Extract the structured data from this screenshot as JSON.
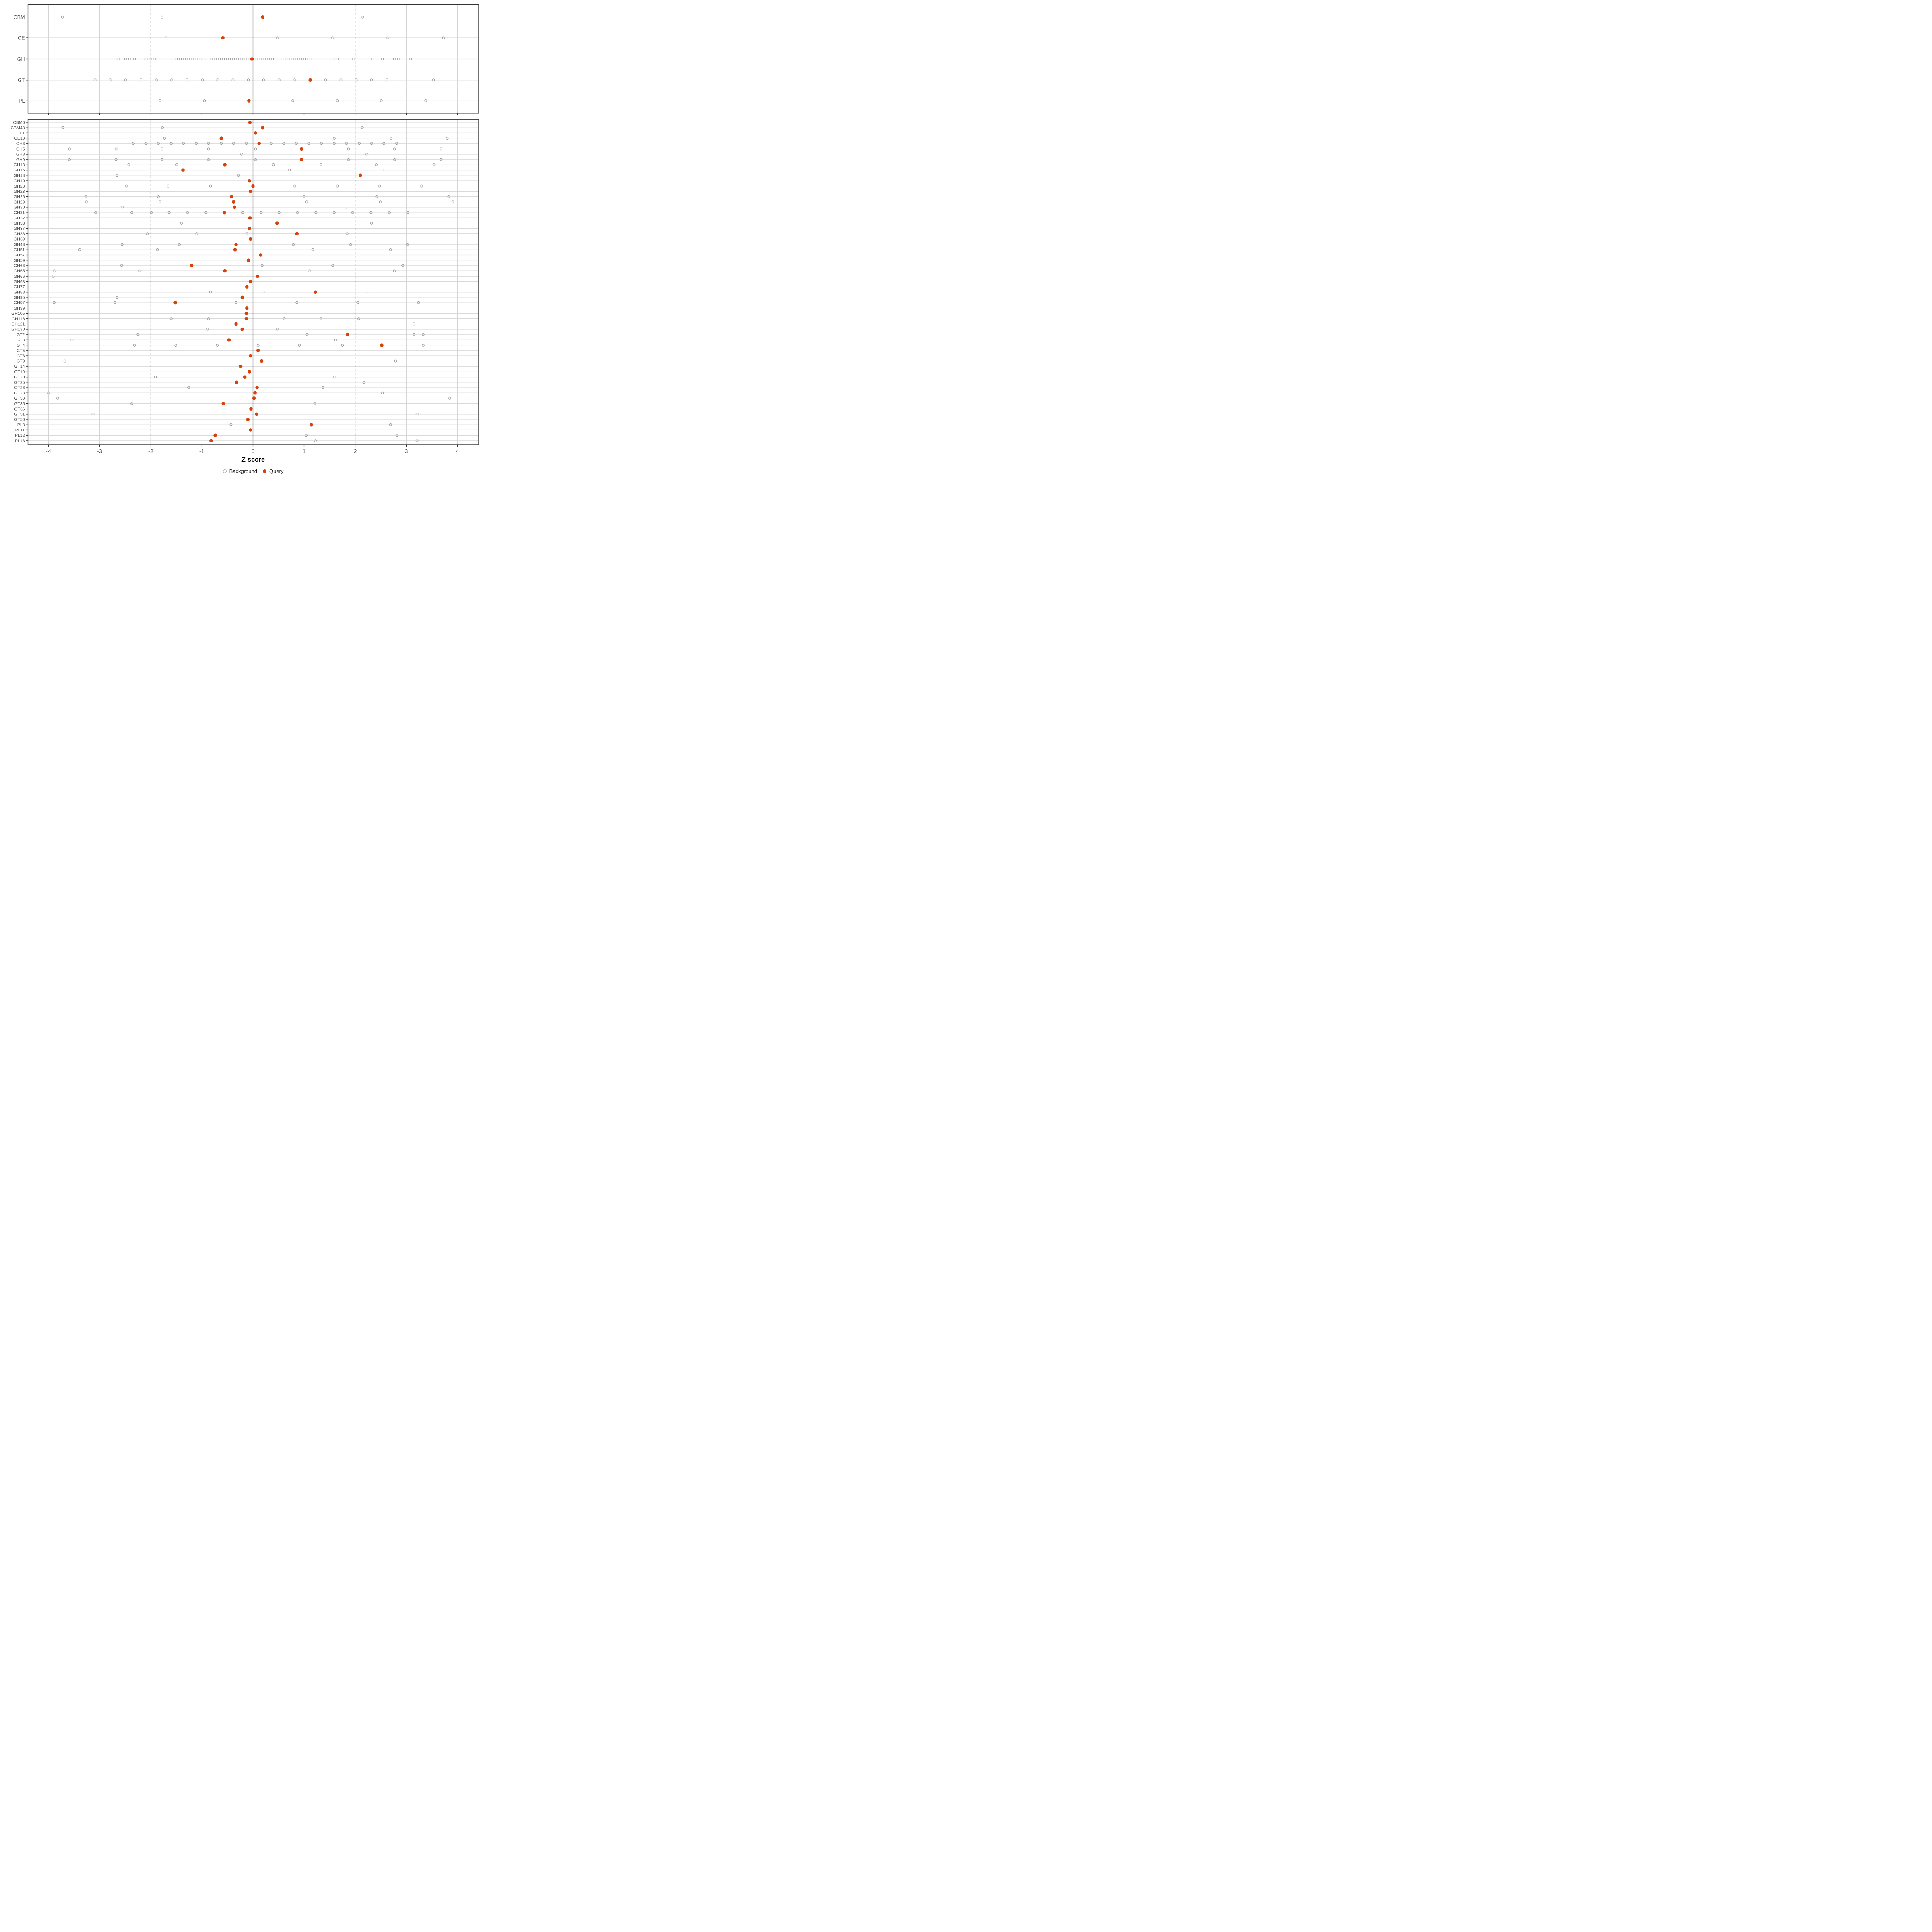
{
  "axis": {
    "label": "Z-score",
    "ticks": [
      -4,
      -3,
      -2,
      -1,
      0,
      1,
      2,
      3,
      4
    ],
    "range": [
      -4.4,
      4.41
    ],
    "zero_line": 0,
    "dashed_lines": [
      -2,
      2
    ]
  },
  "legend": {
    "background_label": "Background",
    "query_label": "Query"
  },
  "colors": {
    "query": "#d6430a",
    "background_stroke": "#9b9b9b",
    "grid": "#d9d9d9",
    "panel_border": "#333333",
    "axis_text": "#4d4d4d",
    "ref_line": "#4a4a4a"
  },
  "chart_data": [
    {
      "type": "scatter",
      "panel": "top",
      "xlabel": "Z-score",
      "xlim": [
        -4.4,
        4.41
      ],
      "legend_position": "bottom",
      "grid": true,
      "rows": [
        {
          "label": "CBM",
          "query": 0.19,
          "background": [
            -3.73,
            -1.78,
            2.15
          ]
        },
        {
          "label": "CE",
          "query": -0.59,
          "background": [
            -1.7,
            0.48,
            1.56,
            2.64,
            3.73
          ]
        },
        {
          "label": "GH",
          "query": -0.02,
          "background": [
            -2.64,
            -2.49,
            -2.41,
            -2.32,
            -2.09,
            -2.01,
            -1.93,
            -1.86,
            -1.62,
            -1.54,
            -1.46,
            -1.38,
            -1.3,
            -1.22,
            -1.14,
            -1.06,
            -0.98,
            -0.9,
            -0.82,
            -0.74,
            -0.66,
            -0.58,
            -0.5,
            -0.42,
            -0.34,
            -0.26,
            -0.18,
            -0.1,
            0.06,
            0.14,
            0.22,
            0.3,
            0.38,
            0.45,
            0.53,
            0.61,
            0.69,
            0.77,
            0.85,
            0.93,
            1.01,
            1.09,
            1.17,
            1.41,
            1.49,
            1.57,
            1.65,
            1.97,
            2.29,
            2.53,
            2.77,
            2.85,
            3.08
          ]
        },
        {
          "label": "GT",
          "query": 1.12,
          "background": [
            -3.09,
            -2.79,
            -2.49,
            -2.19,
            -1.89,
            -1.59,
            -1.29,
            -0.99,
            -0.69,
            -0.39,
            -0.09,
            0.21,
            0.51,
            0.81,
            1.42,
            1.72,
            2.02,
            2.32,
            2.62,
            3.53
          ]
        },
        {
          "label": "PL",
          "query": -0.08,
          "background": [
            -1.82,
            -0.95,
            0.78,
            1.65,
            2.51,
            3.38
          ]
        }
      ]
    },
    {
      "type": "scatter",
      "panel": "bottom",
      "xlabel": "Z-score",
      "xlim": [
        -4.4,
        4.41
      ],
      "grid": true,
      "rows": [
        {
          "label": "CBM6",
          "query": -0.06,
          "background": []
        },
        {
          "label": "CBM48",
          "query": 0.19,
          "background": [
            -3.72,
            -1.77,
            2.14
          ]
        },
        {
          "label": "CE1",
          "query": 0.05,
          "background": []
        },
        {
          "label": "CE10",
          "query": -0.62,
          "background": [
            -1.73,
            1.59,
            2.7,
            3.8
          ]
        },
        {
          "label": "GH3",
          "query": 0.12,
          "background": [
            -2.34,
            -2.09,
            -1.85,
            -1.6,
            -1.36,
            -1.11,
            -0.87,
            -0.62,
            -0.38,
            -0.13,
            0.36,
            0.6,
            0.85,
            1.09,
            1.34,
            1.59,
            1.83,
            2.08,
            2.32,
            2.56,
            2.81
          ]
        },
        {
          "label": "GH5",
          "query": 0.95,
          "background": [
            -3.59,
            -2.68,
            -1.78,
            -0.87,
            0.05,
            1.87,
            2.77,
            3.68
          ]
        },
        {
          "label": "GH8",
          "query": null,
          "background": [
            -0.22,
            2.23
          ]
        },
        {
          "label": "GH9",
          "query": 0.95,
          "background": [
            -3.59,
            -2.68,
            -1.78,
            -0.87,
            0.05,
            1.87,
            2.77,
            3.68
          ]
        },
        {
          "label": "GH13",
          "query": -0.55,
          "background": [
            -2.43,
            -1.49,
            0.4,
            1.33,
            2.41,
            3.54
          ]
        },
        {
          "label": "GH15",
          "query": -1.37,
          "background": [
            0.71,
            2.58
          ]
        },
        {
          "label": "GH18",
          "query": 2.1,
          "background": [
            -2.66,
            -0.28
          ]
        },
        {
          "label": "GH19",
          "query": -0.07,
          "background": []
        },
        {
          "label": "GH20",
          "query": 0.0,
          "background": [
            -2.48,
            -1.66,
            -0.83,
            0.82,
            1.65,
            2.48,
            3.3
          ]
        },
        {
          "label": "GH23",
          "query": -0.05,
          "background": []
        },
        {
          "label": "GH26",
          "query": -0.42,
          "background": [
            -3.27,
            -1.85,
            1.0,
            2.42,
            3.83
          ]
        },
        {
          "label": "GH29",
          "query": -0.38,
          "background": [
            -3.26,
            -1.82,
            1.05,
            2.49,
            3.91
          ]
        },
        {
          "label": "GH30",
          "query": -0.36,
          "background": [
            -2.56,
            1.82
          ]
        },
        {
          "label": "GH31",
          "query": -0.56,
          "background": [
            -3.08,
            -2.37,
            -1.99,
            -1.64,
            -1.28,
            -0.92,
            -0.2,
            0.16,
            0.51,
            0.87,
            1.23,
            1.59,
            1.95,
            2.31,
            2.67,
            3.03
          ]
        },
        {
          "label": "GH32",
          "query": -0.06,
          "background": []
        },
        {
          "label": "GH33",
          "query": 0.47,
          "background": [
            -1.4,
            2.32
          ]
        },
        {
          "label": "GH37",
          "query": -0.07,
          "background": []
        },
        {
          "label": "GH38",
          "query": 0.86,
          "background": [
            -2.07,
            -1.1,
            -0.12,
            1.84
          ]
        },
        {
          "label": "GH39",
          "query": -0.05,
          "background": []
        },
        {
          "label": "GH43",
          "query": -0.33,
          "background": [
            -2.56,
            -1.44,
            0.79,
            1.91,
            3.02
          ]
        },
        {
          "label": "GH51",
          "query": -0.35,
          "background": [
            -3.39,
            -1.87,
            1.17,
            2.69
          ]
        },
        {
          "label": "GH57",
          "query": 0.15,
          "background": []
        },
        {
          "label": "GH59",
          "query": -0.09,
          "background": []
        },
        {
          "label": "GH63",
          "query": -1.2,
          "background": [
            -2.57,
            0.18,
            1.56,
            2.93
          ]
        },
        {
          "label": "GH65",
          "query": -0.55,
          "background": [
            -3.88,
            -2.21,
            1.1,
            2.77
          ]
        },
        {
          "label": "GH66",
          "query": 0.09,
          "background": [
            -3.91
          ]
        },
        {
          "label": "GH68",
          "query": -0.05,
          "background": []
        },
        {
          "label": "GH77",
          "query": -0.12,
          "background": []
        },
        {
          "label": "GH88",
          "query": 1.22,
          "background": [
            -0.83,
            0.2,
            2.25
          ]
        },
        {
          "label": "GH95",
          "query": -0.21,
          "background": [
            -2.66
          ]
        },
        {
          "label": "GH97",
          "query": -1.52,
          "background": [
            -3.89,
            -2.7,
            -0.33,
            0.86,
            2.05,
            3.24
          ]
        },
        {
          "label": "GH99",
          "query": -0.12,
          "background": []
        },
        {
          "label": "GH105",
          "query": -0.13,
          "background": []
        },
        {
          "label": "GH116",
          "query": -0.13,
          "background": [
            -1.6,
            -0.87,
            0.61,
            1.33,
            2.07
          ]
        },
        {
          "label": "GH121",
          "query": -0.33,
          "background": [
            3.15
          ]
        },
        {
          "label": "GH130",
          "query": -0.21,
          "background": [
            -0.89,
            0.48
          ]
        },
        {
          "label": "GT2",
          "query": 1.85,
          "background": [
            -2.25,
            1.06,
            3.15,
            3.33
          ]
        },
        {
          "label": "GT3",
          "query": -0.47,
          "background": [
            -3.54,
            1.62
          ]
        },
        {
          "label": "GT4",
          "query": 2.52,
          "background": [
            -2.32,
            -1.51,
            -0.7,
            0.1,
            0.91,
            1.75,
            3.33
          ]
        },
        {
          "label": "GT5",
          "query": 0.1,
          "background": []
        },
        {
          "label": "GT8",
          "query": -0.05,
          "background": []
        },
        {
          "label": "GT9",
          "query": 0.17,
          "background": [
            -3.68,
            2.79
          ]
        },
        {
          "label": "GT14",
          "query": -0.24,
          "background": []
        },
        {
          "label": "GT19",
          "query": -0.07,
          "background": []
        },
        {
          "label": "GT20",
          "query": -0.16,
          "background": [
            -1.91,
            1.6
          ]
        },
        {
          "label": "GT25",
          "query": -0.32,
          "background": [
            2.17
          ]
        },
        {
          "label": "GT26",
          "query": 0.08,
          "background": [
            -1.26,
            1.37
          ]
        },
        {
          "label": "GT28",
          "query": 0.04,
          "background": [
            -4.0,
            2.53
          ]
        },
        {
          "label": "GT30",
          "query": 0.02,
          "background": [
            -3.82,
            3.85
          ]
        },
        {
          "label": "GT35",
          "query": -0.58,
          "background": [
            -2.37,
            1.21
          ]
        },
        {
          "label": "GT36",
          "query": -0.04,
          "background": []
        },
        {
          "label": "GT51",
          "query": 0.07,
          "background": [
            -3.13,
            3.21
          ]
        },
        {
          "label": "GT56",
          "query": -0.1,
          "background": []
        },
        {
          "label": "PL8",
          "query": 1.14,
          "background": [
            -0.43,
            2.69
          ]
        },
        {
          "label": "PL11",
          "query": -0.05,
          "background": []
        },
        {
          "label": "PL12",
          "query": -0.74,
          "background": [
            1.04,
            2.82
          ]
        },
        {
          "label": "PL13",
          "query": -0.82,
          "background": [
            1.22,
            3.21
          ]
        }
      ]
    }
  ]
}
